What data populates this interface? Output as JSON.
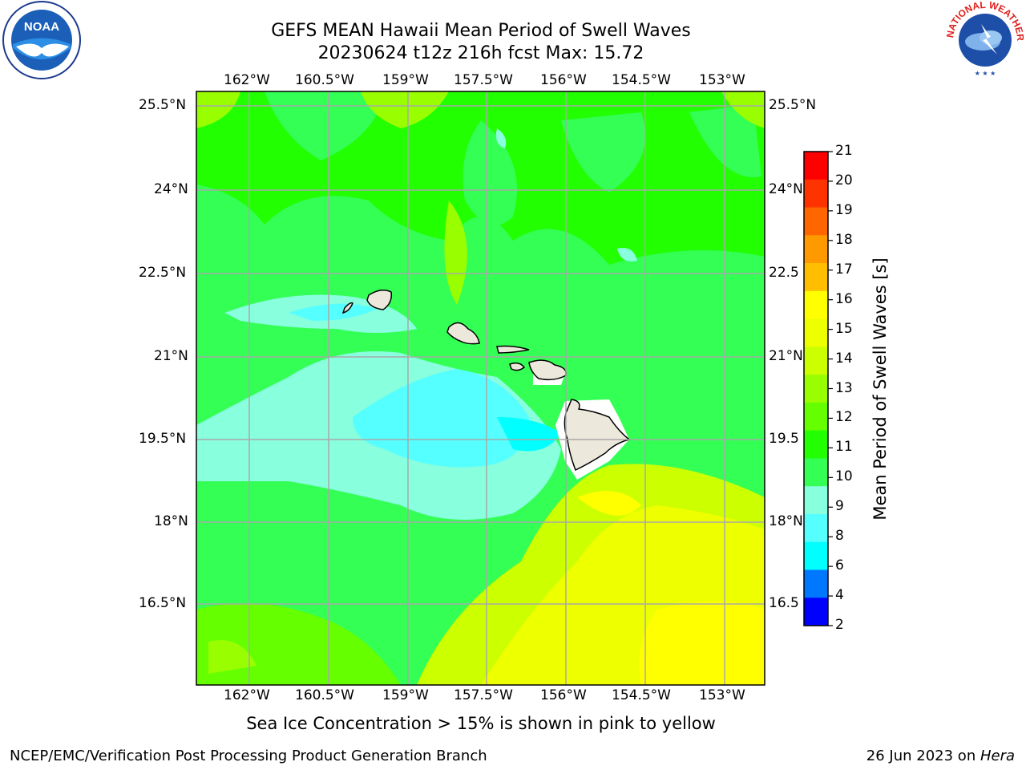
{
  "title_line1": "GEFS MEAN Hawaii Mean Period of Swell Waves",
  "title_line2": "20230624 t12z 216h fcst   Max: 15.72",
  "logos": {
    "left": "noaa-logo",
    "right": "national-weather-service-logo",
    "left_text": "NOAA",
    "right_text": "NATIONAL WEATHER SERVICE"
  },
  "map": {
    "lon_labels": [
      "162°W",
      "160.5°W",
      "159°W",
      "157.5°W",
      "156°W",
      "154.5°W",
      "153°W"
    ],
    "lat_labels": [
      "25.5°N",
      "24°N",
      "22.5°N",
      "21°N",
      "19.5°N",
      "18°N",
      "16.5°N"
    ],
    "lat_labels_right": [
      "25.5°N",
      "24°N",
      "22.5",
      "21°N",
      "19.5",
      "18°N",
      "16.5"
    ],
    "lon_range": [
      -163.0,
      -152.3
    ],
    "lat_range": [
      15.0,
      25.8
    ]
  },
  "colorbar": {
    "title": "Mean Period of Swell Waves [s]",
    "ticks": [
      "21",
      "20",
      "19",
      "18",
      "17",
      "16",
      "15",
      "14",
      "13",
      "12",
      "11",
      "10",
      "9",
      "8",
      "6",
      "4",
      "2"
    ],
    "colors": [
      "#ff0000",
      "#ff3300",
      "#ff6600",
      "#ff9900",
      "#ffbf00",
      "#ffff00",
      "#eeff00",
      "#ccff00",
      "#99ff00",
      "#66ff00",
      "#22ff00",
      "#33ff55",
      "#88ffdd",
      "#55ffff",
      "#00ffff",
      "#0077ff",
      "#0000ff"
    ]
  },
  "footer_note": "Sea Ice Concentration > 15% is shown in pink to yellow",
  "credit_left": "NCEP/EMC/Verification Post Processing Product Generation Branch",
  "credit_right_prefix": "26 Jun 2023 on ",
  "credit_right_host": "Hera"
}
